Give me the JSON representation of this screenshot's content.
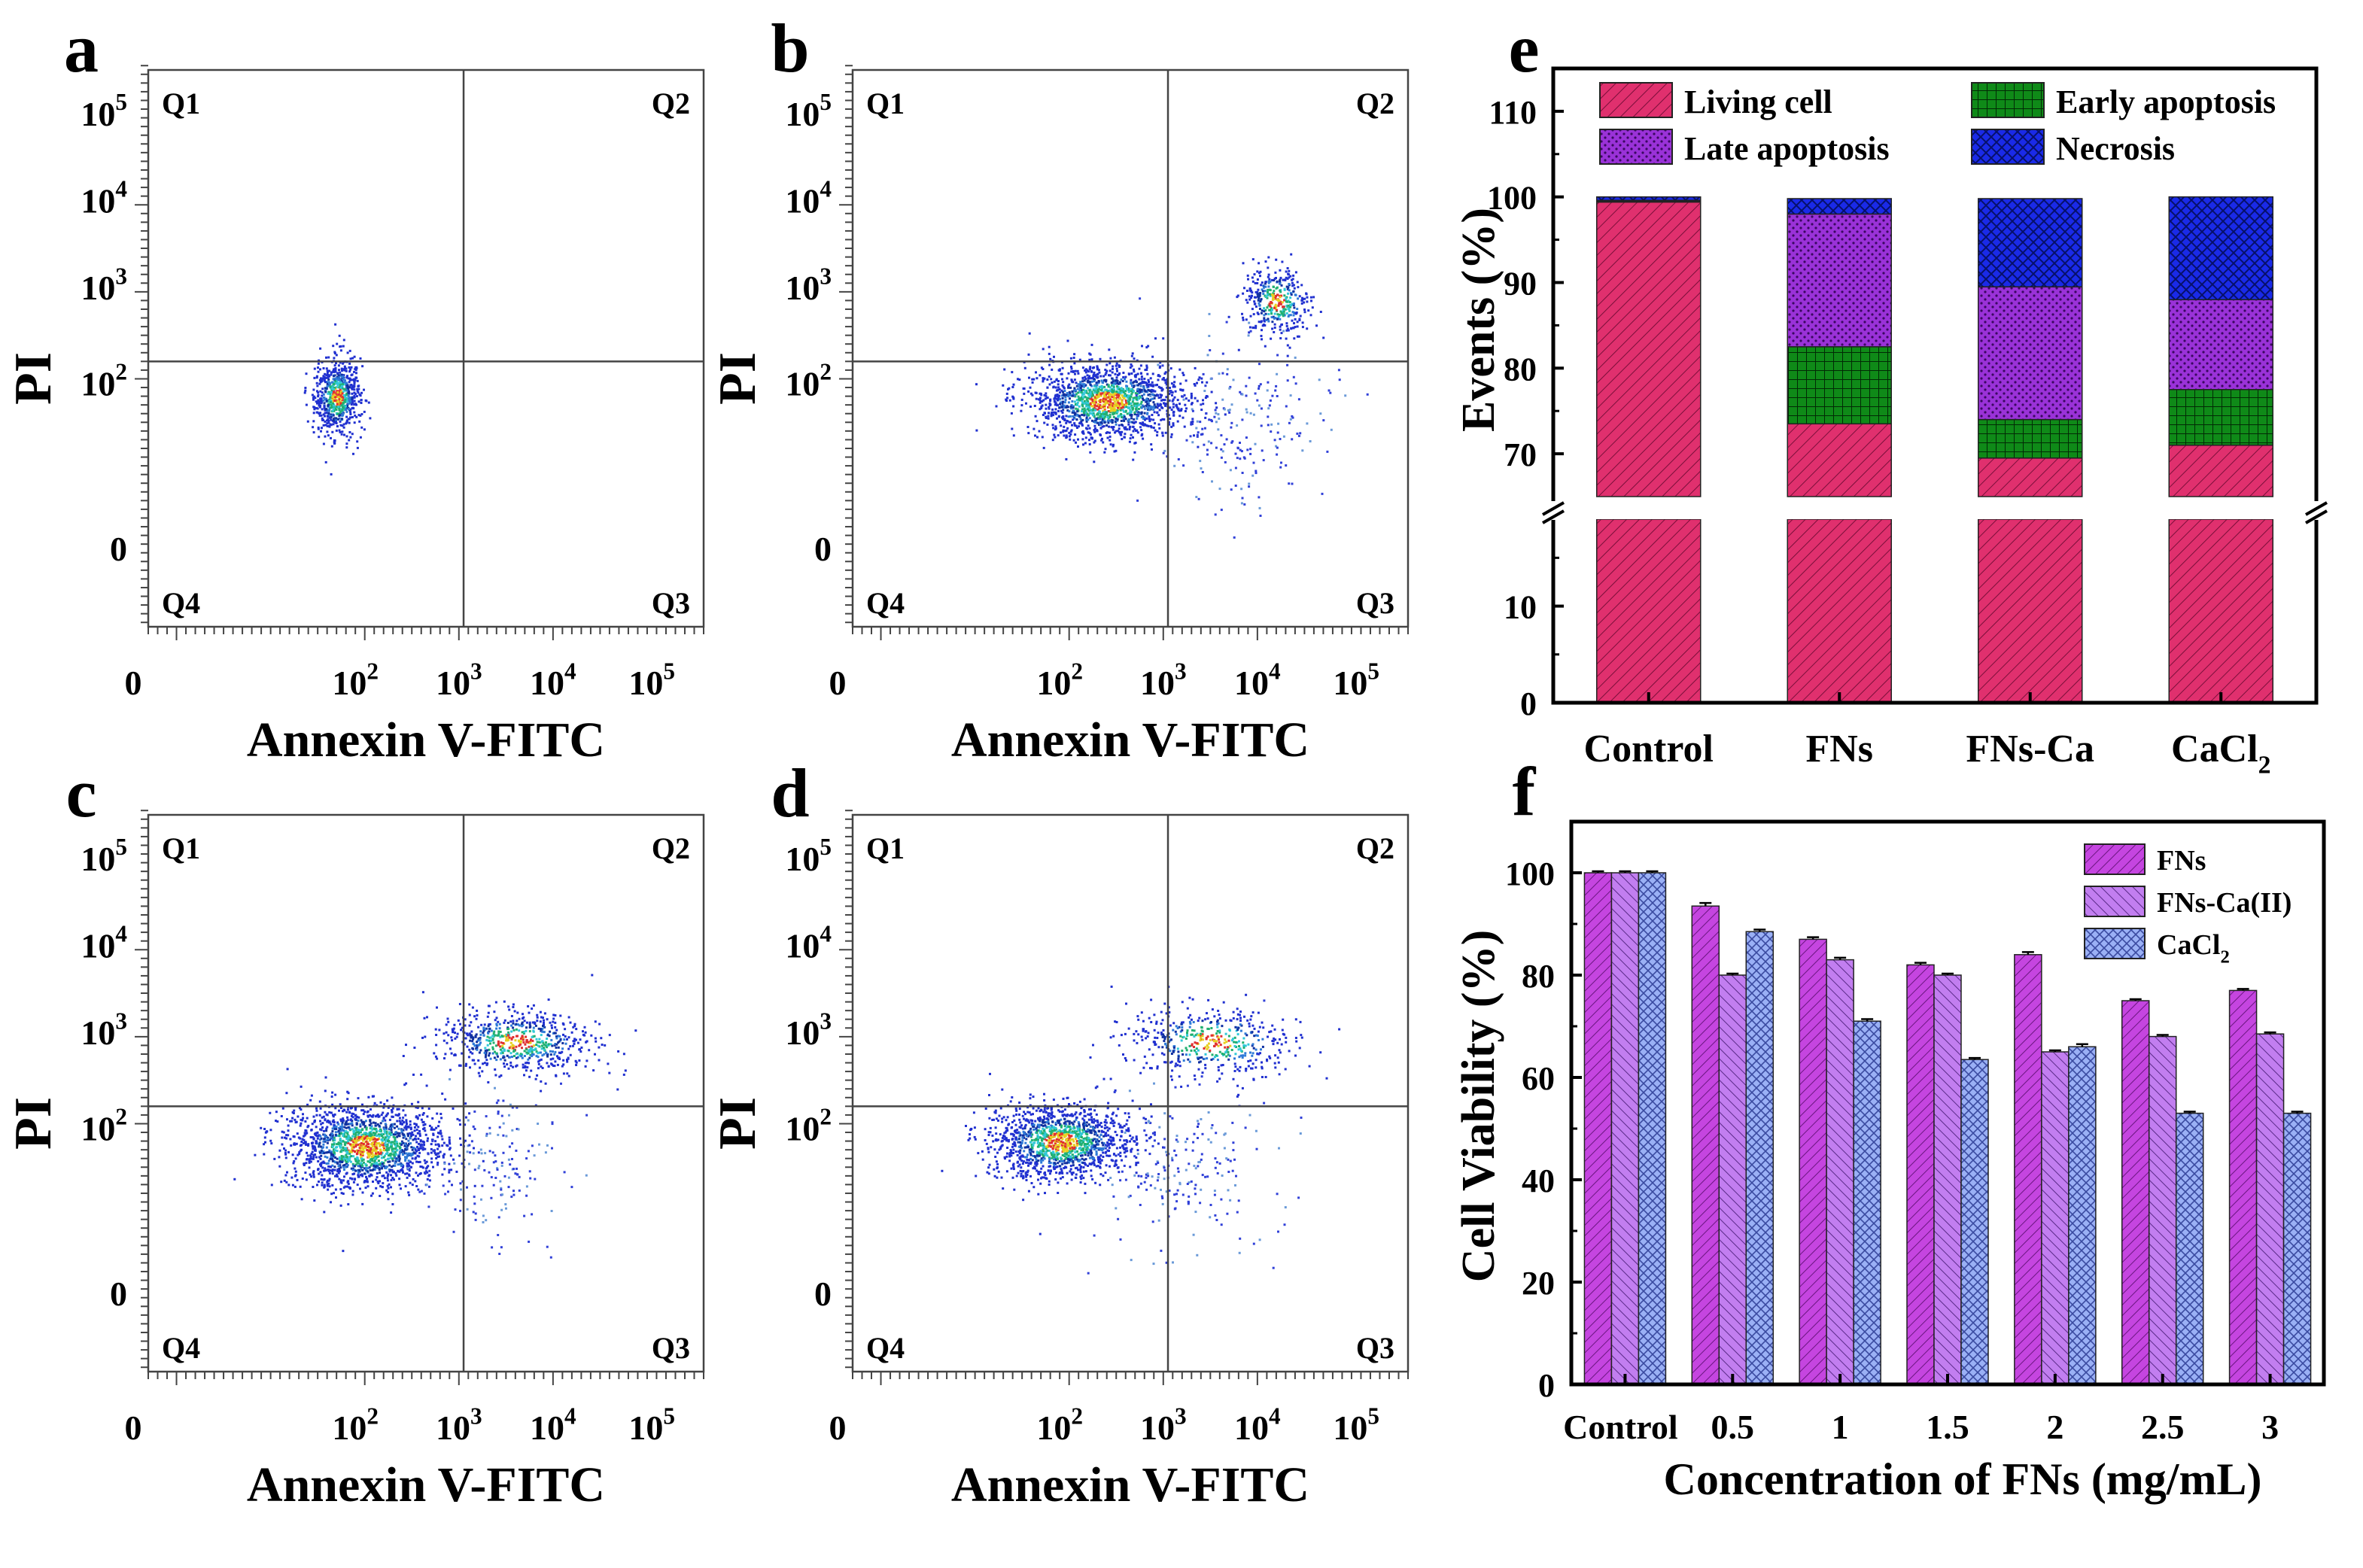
{
  "flow_panels": [
    {
      "letter": "a",
      "quadrants": [
        "Q1",
        "Q2",
        "Q3",
        "Q4"
      ],
      "xlabel": "Annexin V-FITC",
      "ylabel": "PI",
      "x_ticks": [
        {
          "base": "0",
          "exp": ""
        },
        {
          "base": "10",
          "exp": "2"
        },
        {
          "base": "10",
          "exp": "3"
        },
        {
          "base": "10",
          "exp": "4"
        },
        {
          "base": "10",
          "exp": "5"
        }
      ],
      "y_ticks": [
        {
          "base": "0",
          "exp": ""
        },
        {
          "base": "10",
          "exp": "2"
        },
        {
          "base": "10",
          "exp": "3"
        },
        {
          "base": "10",
          "exp": "4"
        },
        {
          "base": "10",
          "exp": "5"
        }
      ],
      "clusters": [
        {
          "x": 1.7,
          "y": 1.8,
          "sx": 0.12,
          "sy": 0.22,
          "n": 700,
          "dense": true
        }
      ]
    },
    {
      "letter": "b",
      "quadrants": [
        "Q1",
        "Q2",
        "Q3",
        "Q4"
      ],
      "xlabel": "Annexin V-FITC",
      "ylabel": "PI",
      "x_ticks": [
        {
          "base": "0",
          "exp": ""
        },
        {
          "base": "10",
          "exp": "2"
        },
        {
          "base": "10",
          "exp": "3"
        },
        {
          "base": "10",
          "exp": "4"
        },
        {
          "base": "10",
          "exp": "5"
        }
      ],
      "y_ticks": [
        {
          "base": "0",
          "exp": ""
        },
        {
          "base": "10",
          "exp": "2"
        },
        {
          "base": "10",
          "exp": "3"
        },
        {
          "base": "10",
          "exp": "4"
        },
        {
          "base": "10",
          "exp": "5"
        }
      ],
      "clusters": [
        {
          "x": 2.4,
          "y": 1.75,
          "sx": 0.42,
          "sy": 0.22,
          "n": 1600,
          "dense": true
        },
        {
          "x": 4.2,
          "y": 2.9,
          "sx": 0.18,
          "sy": 0.2,
          "n": 380,
          "dense": true
        },
        {
          "x": 3.8,
          "y": 1.5,
          "sx": 0.45,
          "sy": 0.45,
          "n": 220,
          "dense": false
        }
      ]
    },
    {
      "letter": "c",
      "quadrants": [
        "Q1",
        "Q2",
        "Q3",
        "Q4"
      ],
      "xlabel": "Annexin V-FITC",
      "ylabel": "PI",
      "x_ticks": [
        {
          "base": "0",
          "exp": ""
        },
        {
          "base": "10",
          "exp": "2"
        },
        {
          "base": "10",
          "exp": "3"
        },
        {
          "base": "10",
          "exp": "4"
        },
        {
          "base": "10",
          "exp": "5"
        }
      ],
      "y_ticks": [
        {
          "base": "0",
          "exp": ""
        },
        {
          "base": "10",
          "exp": "2"
        },
        {
          "base": "10",
          "exp": "3"
        },
        {
          "base": "10",
          "exp": "4"
        },
        {
          "base": "10",
          "exp": "5"
        }
      ],
      "clusters": [
        {
          "x": 2.0,
          "y": 1.75,
          "sx": 0.42,
          "sy": 0.25,
          "n": 1700,
          "dense": true
        },
        {
          "x": 3.6,
          "y": 2.95,
          "sx": 0.42,
          "sy": 0.18,
          "n": 650,
          "dense": true
        },
        {
          "x": 3.3,
          "y": 1.5,
          "sx": 0.4,
          "sy": 0.4,
          "n": 160,
          "dense": false
        }
      ]
    },
    {
      "letter": "d",
      "quadrants": [
        "Q1",
        "Q2",
        "Q3",
        "Q4"
      ],
      "xlabel": "Annexin V-FITC",
      "ylabel": "PI",
      "x_ticks": [
        {
          "base": "0",
          "exp": ""
        },
        {
          "base": "10",
          "exp": "2"
        },
        {
          "base": "10",
          "exp": "3"
        },
        {
          "base": "10",
          "exp": "4"
        },
        {
          "base": "10",
          "exp": "5"
        }
      ],
      "y_ticks": [
        {
          "base": "0",
          "exp": ""
        },
        {
          "base": "10",
          "exp": "2"
        },
        {
          "base": "10",
          "exp": "3"
        },
        {
          "base": "10",
          "exp": "4"
        },
        {
          "base": "10",
          "exp": "5"
        }
      ],
      "clusters": [
        {
          "x": 1.9,
          "y": 1.8,
          "sx": 0.38,
          "sy": 0.22,
          "n": 1400,
          "dense": true
        },
        {
          "x": 3.5,
          "y": 2.95,
          "sx": 0.45,
          "sy": 0.2,
          "n": 480,
          "dense": true
        },
        {
          "x": 3.2,
          "y": 1.5,
          "sx": 0.45,
          "sy": 0.45,
          "n": 200,
          "dense": false
        }
      ]
    }
  ],
  "chart_data": [
    {
      "panel": "e",
      "type": "bar",
      "stacked": true,
      "ylabel": "Events (%)",
      "categories": [
        "Control",
        "FNs",
        "FNs-Ca",
        "CaCl2"
      ],
      "category_labels": [
        {
          "base": "Control",
          "sub": ""
        },
        {
          "base": "FNs",
          "sub": ""
        },
        {
          "base": "FNs-Ca",
          "sub": ""
        },
        {
          "base": "CaCl",
          "sub": "2"
        }
      ],
      "series": [
        {
          "name": "Living cell",
          "values": [
            99.4,
            73.5,
            69.5,
            71.0
          ],
          "color": "#e0306e",
          "pattern": "diag"
        },
        {
          "name": "Early apoptosis",
          "values": [
            0.1,
            9.0,
            4.5,
            6.5
          ],
          "color": "#0f8a18",
          "pattern": "grid"
        },
        {
          "name": "Late apoptosis",
          "values": [
            0.1,
            15.5,
            15.5,
            10.5
          ],
          "color": "#9a32d8",
          "pattern": "dots"
        },
        {
          "name": "Necrosis",
          "values": [
            0.4,
            1.8,
            10.3,
            12.0
          ],
          "color": "#1a2ae8",
          "pattern": "cross"
        }
      ],
      "axis_break": [
        19,
        65
      ],
      "ylim": [
        0,
        115
      ],
      "yticks": [
        0,
        10,
        70,
        80,
        90,
        100,
        110
      ],
      "legend_location": "top"
    },
    {
      "panel": "f",
      "type": "bar",
      "ylabel": "Cell Viability (%)",
      "xlabel": "Concentration of FNs (mg/mL)",
      "categories": [
        "Control",
        "0.5",
        "1",
        "1.5",
        "2",
        "2.5",
        "3"
      ],
      "series": [
        {
          "name": "FNs",
          "label_base": "FNs",
          "label_sub": "",
          "values": [
            100,
            93.5,
            87,
            82,
            84,
            75,
            77
          ],
          "errors": [
            0.3,
            0.6,
            0.4,
            0.4,
            0.5,
            0.3,
            0.3
          ],
          "color": "#c545e0",
          "pattern": "diag"
        },
        {
          "name": "FNs-Ca(II)",
          "label_base": "FNs-Ca(II)",
          "label_sub": "",
          "values": [
            100,
            80,
            83,
            80,
            65,
            68,
            68.5
          ],
          "errors": [
            0.3,
            0.3,
            0.4,
            0.3,
            0.3,
            0.3,
            0.3
          ],
          "color": "#c27ef0",
          "pattern": "diag2"
        },
        {
          "name": "CaCl2",
          "label_base": "CaCl",
          "label_sub": "2",
          "values": [
            100,
            88.5,
            71,
            63.5,
            66,
            53,
            53
          ],
          "errors": [
            0.3,
            0.4,
            0.4,
            0.3,
            0.5,
            0.3,
            0.3
          ],
          "color": "#9ab0f5",
          "pattern": "cross"
        }
      ],
      "ylim": [
        0,
        110
      ],
      "yticks": [
        0,
        20,
        40,
        60,
        80,
        100
      ],
      "legend_location": "top-right"
    }
  ]
}
